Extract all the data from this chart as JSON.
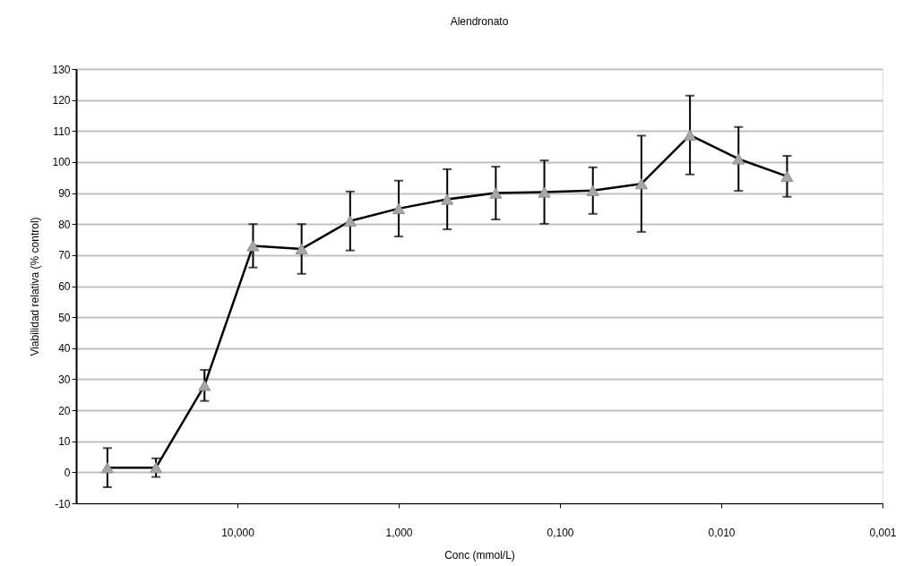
{
  "chart_data": {
    "type": "line",
    "title": "Alendronato",
    "xlabel": "Conc (mmol/L)",
    "ylabel": "Viabilidad relativa (% control)",
    "log": "x",
    "grid": "y",
    "marker": "triangle",
    "line_style": "solid",
    "xlim": [
      100,
      0.001
    ],
    "xticks": [
      {
        "value": 10,
        "label": "10,000"
      },
      {
        "value": 1,
        "label": "1,000"
      },
      {
        "value": 0.1,
        "label": "0,100"
      },
      {
        "value": 0.01,
        "label": "0,010"
      },
      {
        "value": 0.001,
        "label": "0,001"
      }
    ],
    "ylim": [
      -10,
      130
    ],
    "yticks": [
      -10,
      0,
      10,
      20,
      30,
      40,
      50,
      60,
      70,
      80,
      90,
      100,
      110,
      120,
      130
    ],
    "x": [
      64,
      32,
      16,
      8,
      4,
      2,
      1,
      0.5,
      0.25,
      0.125,
      0.0625,
      0.03125,
      0.015625,
      0.0078125,
      0.00390625
    ],
    "series": [
      {
        "color": "#000000",
        "values": [
          1.5,
          1.5,
          28,
          73,
          72,
          81,
          85,
          88,
          90,
          90.3,
          90.8,
          93,
          108.7,
          101,
          95.4
        ],
        "errors": [
          6.3,
          3,
          5,
          7,
          8,
          9.5,
          9,
          9.7,
          8.5,
          10.2,
          7.5,
          15.5,
          12.7,
          10.3,
          6.6
        ]
      }
    ]
  }
}
